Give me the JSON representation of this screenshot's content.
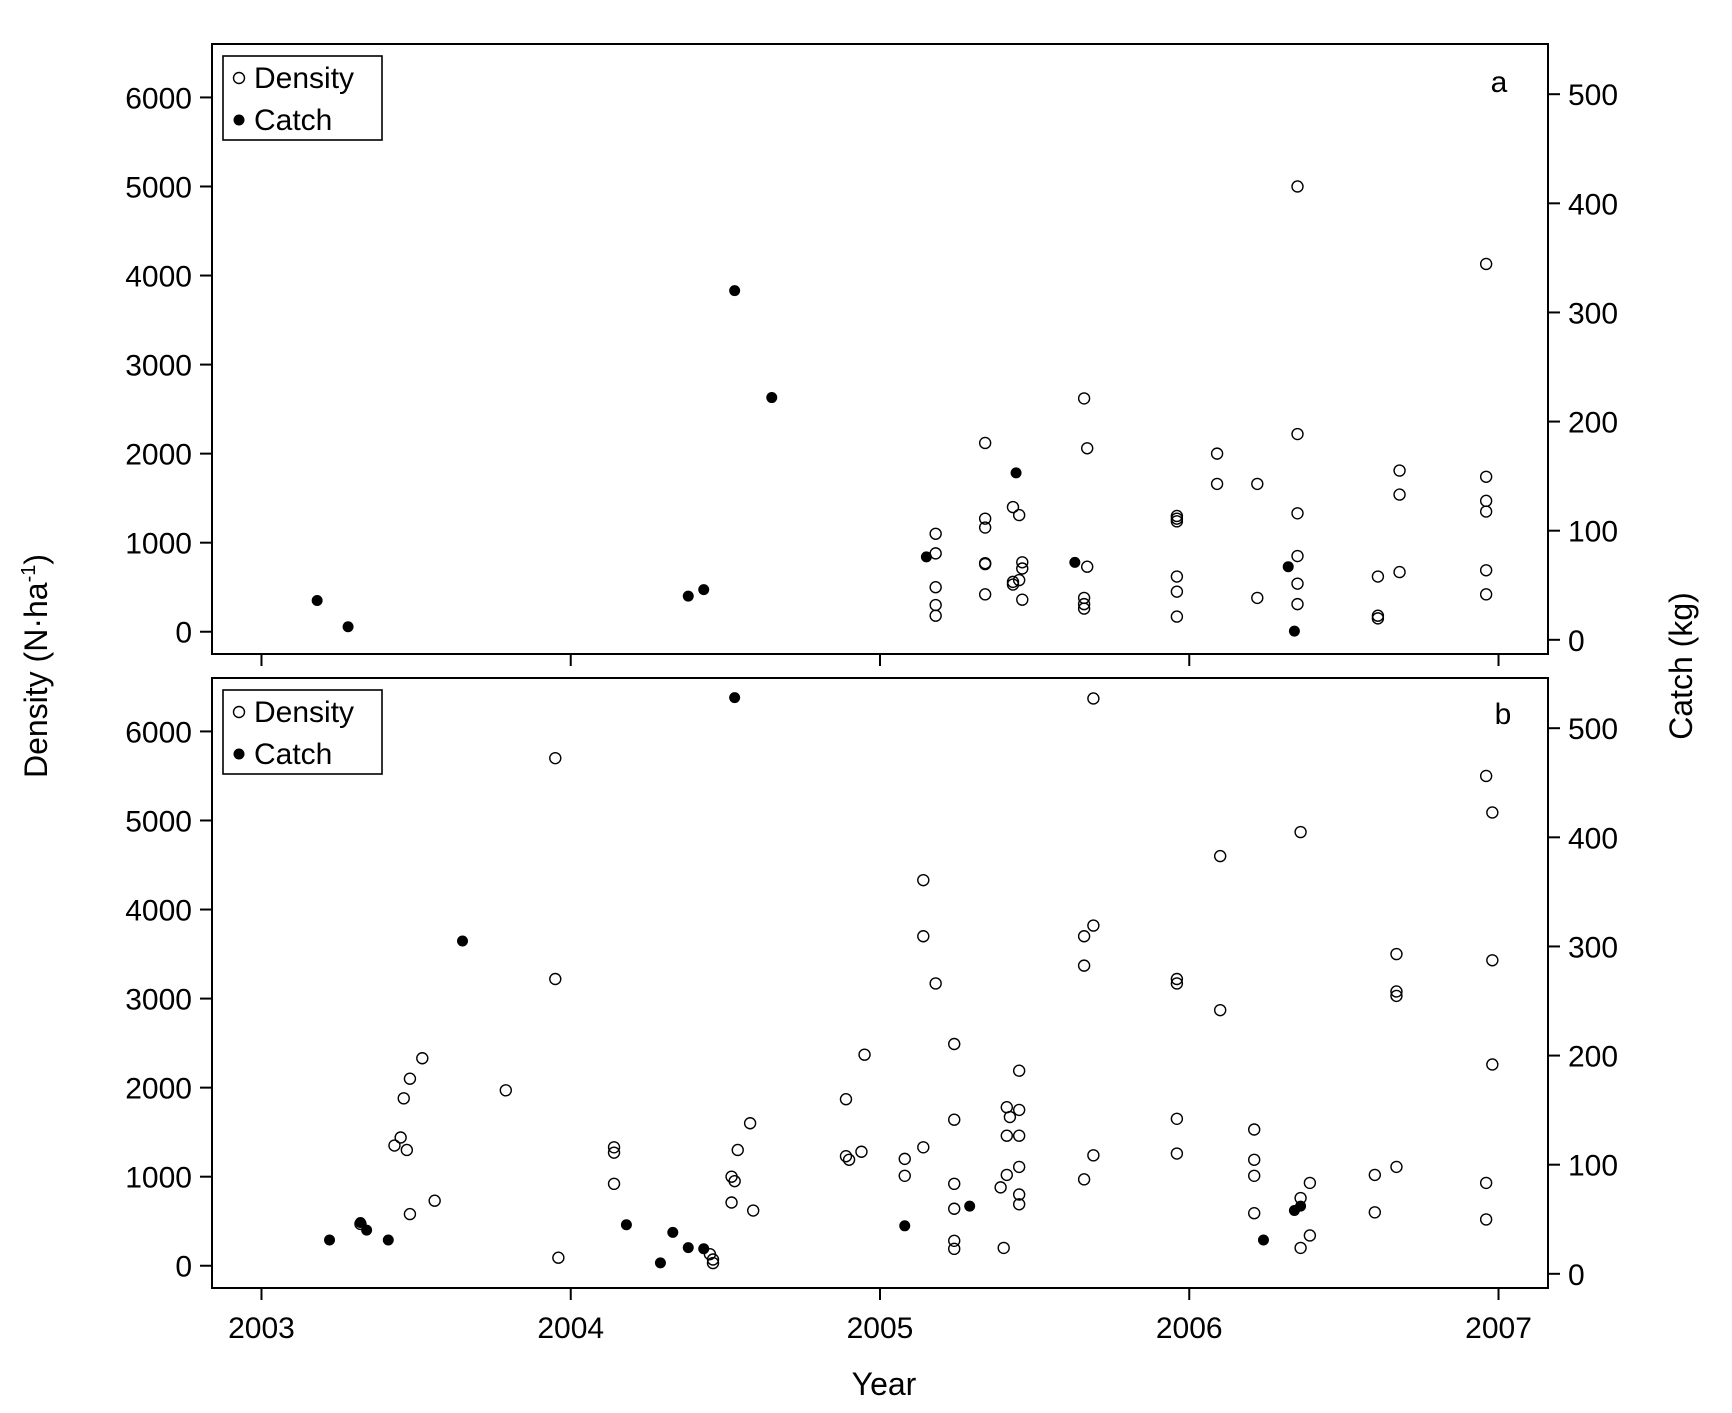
{
  "figure": {
    "x_axis_title": "Year",
    "y_left_title": "Density (N·ha",
    "y_left_title_sup": "-1",
    "y_left_title_close": ")",
    "y_right_title": "Catch (kg)"
  },
  "legend": {
    "density_label": "Density",
    "catch_label": "Catch"
  },
  "chart_data": [
    {
      "type": "scatter",
      "panel_label": "a",
      "xlim": [
        2002.84,
        2007.16
      ],
      "ylim_density": [
        -250,
        6600
      ],
      "ylim_catch": [
        -13,
        546
      ],
      "x_ticks": [
        "2003",
        "2004",
        "2005",
        "2006",
        "2007"
      ],
      "y_left_ticks": [
        "0",
        "1000",
        "2000",
        "3000",
        "4000",
        "5000",
        "6000"
      ],
      "y_right_ticks": [
        "0",
        "100",
        "200",
        "300",
        "400",
        "500"
      ],
      "legend_position": "top-left",
      "density": [
        [
          2005.18,
          1100
        ],
        [
          2005.18,
          880
        ],
        [
          2005.18,
          500
        ],
        [
          2005.18,
          300
        ],
        [
          2005.18,
          180
        ],
        [
          2005.34,
          2120
        ],
        [
          2005.34,
          1270
        ],
        [
          2005.34,
          1170
        ],
        [
          2005.34,
          770
        ],
        [
          2005.34,
          760
        ],
        [
          2005.34,
          420
        ],
        [
          2005.43,
          1400
        ],
        [
          2005.43,
          560
        ],
        [
          2005.43,
          530
        ],
        [
          2005.45,
          1310
        ],
        [
          2005.46,
          780
        ],
        [
          2005.46,
          710
        ],
        [
          2005.45,
          580
        ],
        [
          2005.46,
          360
        ],
        [
          2005.66,
          2620
        ],
        [
          2005.67,
          2060
        ],
        [
          2005.67,
          730
        ],
        [
          2005.66,
          380
        ],
        [
          2005.66,
          310
        ],
        [
          2005.66,
          260
        ],
        [
          2005.96,
          1300
        ],
        [
          2005.96,
          1270
        ],
        [
          2005.96,
          1240
        ],
        [
          2005.96,
          620
        ],
        [
          2005.96,
          450
        ],
        [
          2005.96,
          170
        ],
        [
          2006.09,
          2000
        ],
        [
          2006.09,
          1660
        ],
        [
          2006.22,
          1660
        ],
        [
          2006.22,
          380
        ],
        [
          2006.35,
          5000
        ],
        [
          2006.35,
          2220
        ],
        [
          2006.35,
          1330
        ],
        [
          2006.35,
          850
        ],
        [
          2006.35,
          540
        ],
        [
          2006.35,
          310
        ],
        [
          2006.61,
          620
        ],
        [
          2006.61,
          180
        ],
        [
          2006.61,
          150
        ],
        [
          2006.68,
          1810
        ],
        [
          2006.68,
          1540
        ],
        [
          2006.68,
          670
        ],
        [
          2006.96,
          4130
        ],
        [
          2006.96,
          1740
        ],
        [
          2006.96,
          1470
        ],
        [
          2006.96,
          1350
        ],
        [
          2006.96,
          690
        ],
        [
          2006.96,
          420
        ]
      ],
      "catch": [
        [
          2003.18,
          36
        ],
        [
          2003.28,
          12
        ],
        [
          2004.38,
          40
        ],
        [
          2004.43,
          46
        ],
        [
          2004.53,
          320
        ],
        [
          2004.65,
          222
        ],
        [
          2005.15,
          76
        ],
        [
          2005.44,
          153
        ],
        [
          2005.63,
          71
        ],
        [
          2006.32,
          67
        ],
        [
          2006.34,
          8
        ]
      ]
    },
    {
      "type": "scatter",
      "panel_label": "b",
      "xlim": [
        2002.84,
        2007.16
      ],
      "ylim_density": [
        -250,
        6600
      ],
      "ylim_catch": [
        -13,
        546
      ],
      "x_ticks": [
        "2003",
        "2004",
        "2005",
        "2006",
        "2007"
      ],
      "y_left_ticks": [
        "0",
        "1000",
        "2000",
        "3000",
        "4000",
        "5000",
        "6000"
      ],
      "y_right_ticks": [
        "0",
        "100",
        "200",
        "300",
        "400",
        "500"
      ],
      "legend_position": "top-left",
      "density": [
        [
          2003.32,
          470
        ],
        [
          2003.43,
          1350
        ],
        [
          2003.45,
          1440
        ],
        [
          2003.47,
          1300
        ],
        [
          2003.46,
          1880
        ],
        [
          2003.48,
          2100
        ],
        [
          2003.48,
          580
        ],
        [
          2003.52,
          2330
        ],
        [
          2003.56,
          730
        ],
        [
          2003.79,
          1970
        ],
        [
          2003.95,
          5700
        ],
        [
          2003.95,
          3220
        ],
        [
          2003.96,
          90
        ],
        [
          2004.14,
          1330
        ],
        [
          2004.14,
          1270
        ],
        [
          2004.14,
          920
        ],
        [
          2004.45,
          130
        ],
        [
          2004.46,
          70
        ],
        [
          2004.46,
          30
        ],
        [
          2004.52,
          1000
        ],
        [
          2004.53,
          950
        ],
        [
          2004.52,
          710
        ],
        [
          2004.54,
          1300
        ],
        [
          2004.58,
          1600
        ],
        [
          2004.59,
          620
        ],
        [
          2004.89,
          1870
        ],
        [
          2004.89,
          1230
        ],
        [
          2004.9,
          1190
        ],
        [
          2004.94,
          1280
        ],
        [
          2004.95,
          2370
        ],
        [
          2005.08,
          1200
        ],
        [
          2005.08,
          1010
        ],
        [
          2005.14,
          1330
        ],
        [
          2005.14,
          4330
        ],
        [
          2005.14,
          3700
        ],
        [
          2005.18,
          3170
        ],
        [
          2005.24,
          2490
        ],
        [
          2005.24,
          1640
        ],
        [
          2005.24,
          920
        ],
        [
          2005.24,
          640
        ],
        [
          2005.24,
          280
        ],
        [
          2005.24,
          190
        ],
        [
          2005.39,
          880
        ],
        [
          2005.4,
          200
        ],
        [
          2005.41,
          1780
        ],
        [
          2005.41,
          1460
        ],
        [
          2005.41,
          1020
        ],
        [
          2005.42,
          1670
        ],
        [
          2005.45,
          1750
        ],
        [
          2005.45,
          1460
        ],
        [
          2005.45,
          1110
        ],
        [
          2005.45,
          2190
        ],
        [
          2005.45,
          800
        ],
        [
          2005.45,
          690
        ],
        [
          2005.66,
          3700
        ],
        [
          2005.66,
          3370
        ],
        [
          2005.66,
          970
        ],
        [
          2005.69,
          6370
        ],
        [
          2005.69,
          3820
        ],
        [
          2005.69,
          1240
        ],
        [
          2005.96,
          3220
        ],
        [
          2005.96,
          3170
        ],
        [
          2005.96,
          1650
        ],
        [
          2005.96,
          1260
        ],
        [
          2006.1,
          4600
        ],
        [
          2006.1,
          2870
        ],
        [
          2006.21,
          1530
        ],
        [
          2006.21,
          1190
        ],
        [
          2006.21,
          1010
        ],
        [
          2006.21,
          590
        ],
        [
          2006.36,
          4870
        ],
        [
          2006.36,
          760
        ],
        [
          2006.36,
          200
        ],
        [
          2006.39,
          930
        ],
        [
          2006.39,
          340
        ],
        [
          2006.6,
          1020
        ],
        [
          2006.6,
          600
        ],
        [
          2006.67,
          3500
        ],
        [
          2006.67,
          3080
        ],
        [
          2006.67,
          3030
        ],
        [
          2006.67,
          1110
        ],
        [
          2006.96,
          5500
        ],
        [
          2006.96,
          930
        ],
        [
          2006.96,
          520
        ],
        [
          2006.98,
          5090
        ],
        [
          2006.98,
          3430
        ],
        [
          2006.98,
          2260
        ]
      ],
      "catch": [
        [
          2003.22,
          31
        ],
        [
          2003.32,
          47
        ],
        [
          2003.34,
          40
        ],
        [
          2003.41,
          31
        ],
        [
          2003.65,
          305
        ],
        [
          2004.18,
          45
        ],
        [
          2004.29,
          10
        ],
        [
          2004.33,
          38
        ],
        [
          2004.38,
          24
        ],
        [
          2004.43,
          23
        ],
        [
          2004.53,
          528
        ],
        [
          2005.08,
          44
        ],
        [
          2005.29,
          62
        ],
        [
          2006.24,
          31
        ],
        [
          2006.34,
          58
        ],
        [
          2006.36,
          62
        ]
      ]
    }
  ]
}
